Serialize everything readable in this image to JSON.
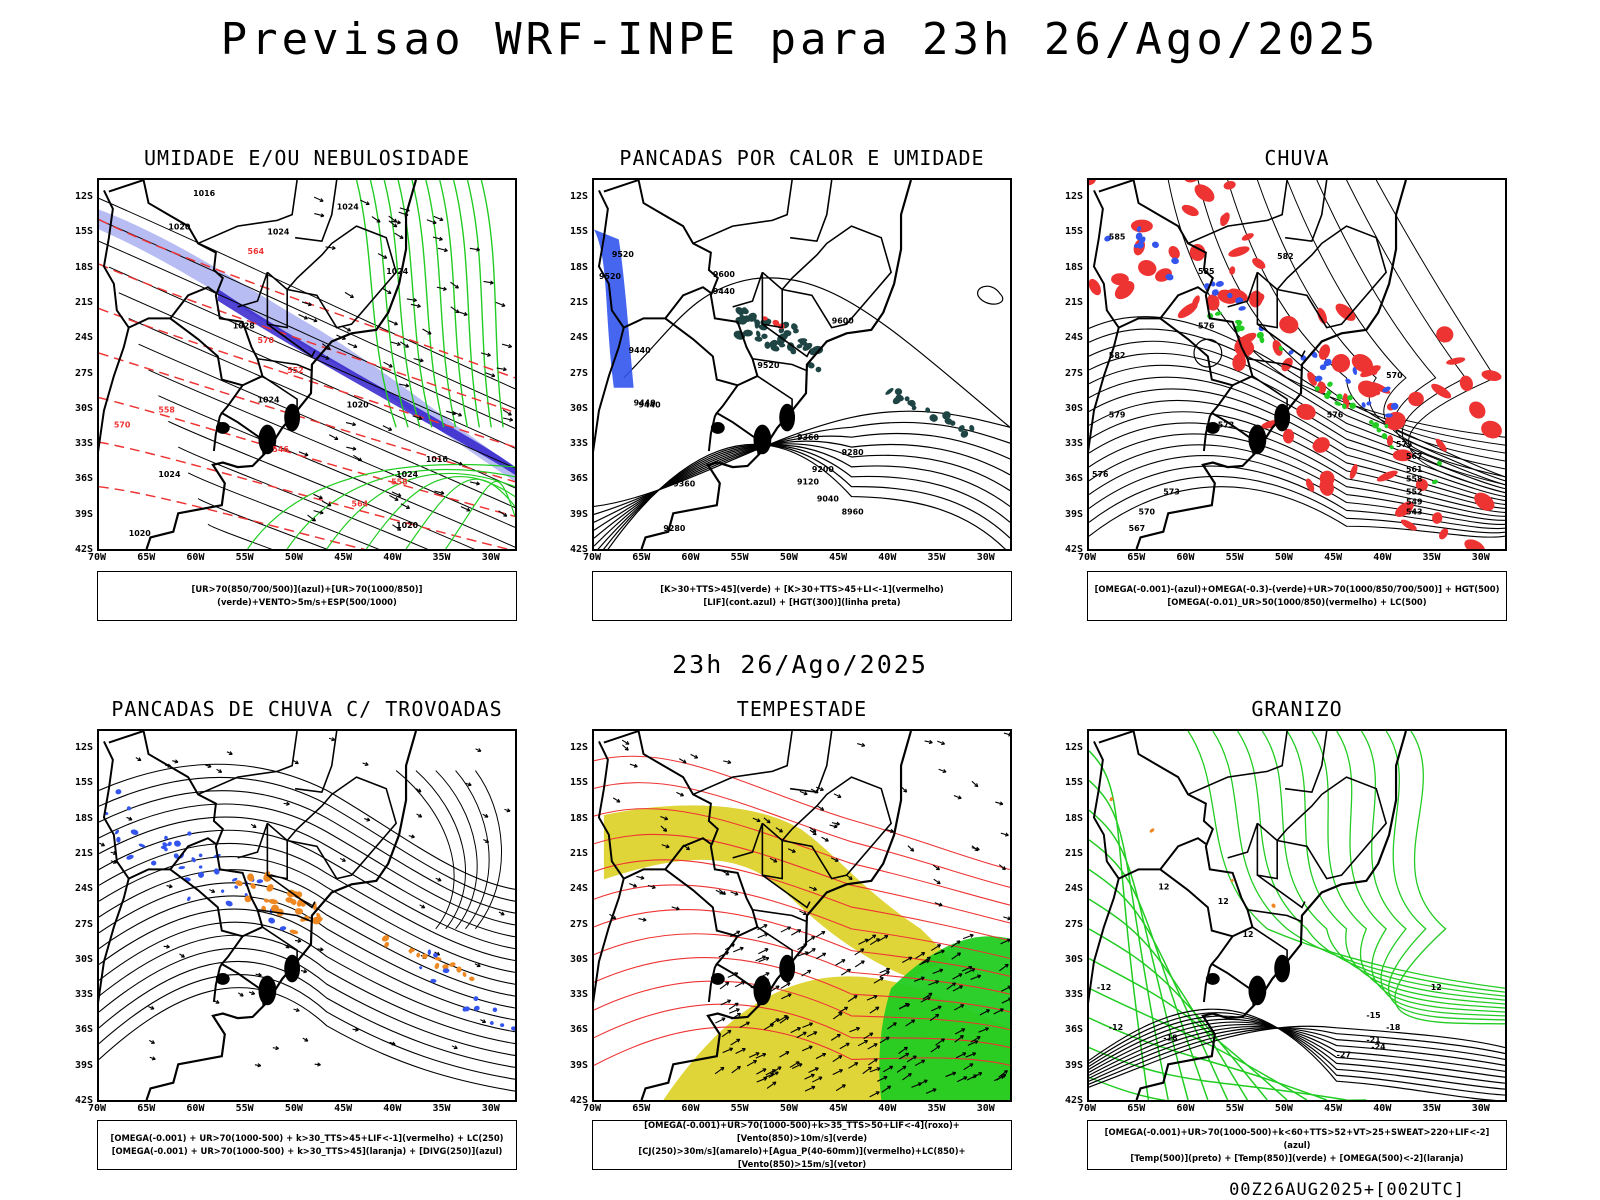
{
  "title": "Previsao WRF-INPE  para 23h 26/Ago/2025",
  "mid_date": "23h 26/Ago/2025",
  "footer": "00Z26AUG2025+[002UTC]",
  "lat_ticks": [
    "12S",
    "15S",
    "18S",
    "21S",
    "24S",
    "27S",
    "30S",
    "33S",
    "36S",
    "39S",
    "42S"
  ],
  "lon_ticks": [
    "70W",
    "65W",
    "60W",
    "55W",
    "50W",
    "45W",
    "40W",
    "35W",
    "30W"
  ],
  "colors": {
    "blue": "#3355ee",
    "green": "#22cc22",
    "red": "#ee3333",
    "orange": "#ee8822",
    "yellow": "#ddd022",
    "dark_teal": "#1e4444",
    "lavender": "#aab0f0",
    "purple": "#3322cc"
  },
  "panels": [
    {
      "title": "UMIDADE E/OU NEBULOSIDADE",
      "legend": [
        "[UR>70(850/700/500)](azul)+[UR>70(1000/850)](verde)+VENTO>5m/s+ESP(500/1000)"
      ],
      "labels": [
        "1016",
        "1020",
        "1024",
        "1024",
        "1024",
        "1028",
        "1024",
        "1020",
        "1016",
        "1024",
        "1020",
        "570",
        "558",
        "564",
        "570",
        "552",
        "546",
        "558",
        "564",
        "1024",
        "1020"
      ]
    },
    {
      "title": "PANCADAS POR CALOR E UMIDADE",
      "legend": [
        "[K>30+TTS>45](verde) + [K>30+TTS>45+LI<-1](vermelho)",
        "[LIF](cont.azul) + [HGT(300)](linha preta)"
      ],
      "labels": [
        "9520",
        "9600",
        "9520",
        "9600",
        "9440",
        "9440",
        "9440",
        "9520",
        "9440",
        "9360",
        "9280",
        "9200",
        "9120",
        "9040",
        "8960",
        "9360",
        "9280"
      ]
    },
    {
      "title": "CHUVA",
      "legend": [
        "[OMEGA(-0.001)-(azul)+OMEGA(-0.3)-(verde)+UR>70(1000/850/700/500)] + HGT(500)",
        "[OMEGA(-0.01)_UR>50(1000/850)(vermelho) + LC(500)"
      ],
      "labels": [
        "582",
        "585",
        "576",
        "582",
        "579",
        "573",
        "576",
        "570",
        "573",
        "567",
        "561",
        "558",
        "552",
        "549",
        "543",
        "576",
        "573",
        "570",
        "567",
        "585"
      ]
    },
    {
      "title": "PANCADAS DE CHUVA C/ TROVOADAS",
      "legend": [
        "[OMEGA(-0.001) + UR>70(1000-500) + k>30_TTS>45+LIF<-1](vermelho) + LC(250)",
        "[OMEGA(-0.001) + UR>70(1000-500) + k>30_TTS>45](laranja) + [DIVG(250)](azul)"
      ],
      "labels": []
    },
    {
      "title": "TEMPESTADE",
      "legend": [
        "[OMEGA(-0.001)+UR>70(1000-500)+k>35_TTS>50+LIF<-4](roxo)+[Vento(850)>10m/s](verde)",
        "[CJ(250)>30m/s](amarelo)+[Agua_P(40-60mm)](vermelho)+LC(850)+[Vento(850)>15m/s](vetor)"
      ],
      "labels": []
    },
    {
      "title": "GRANIZO",
      "legend": [
        "[OMEGA(-0.001)+UR>70(1000-500)+k<60+TTS>52+VT>25+SWEAT>220+LIF<-2](azul)",
        "[Temp(500)](preto) + [Temp(850)](verde) + [OMEGA(500)<-2](laranja)"
      ],
      "labels": [
        "12",
        "12",
        "12",
        "-12",
        "-12",
        "-18",
        "-15",
        "-18",
        "-21",
        "-24",
        "-27",
        "12"
      ]
    }
  ]
}
